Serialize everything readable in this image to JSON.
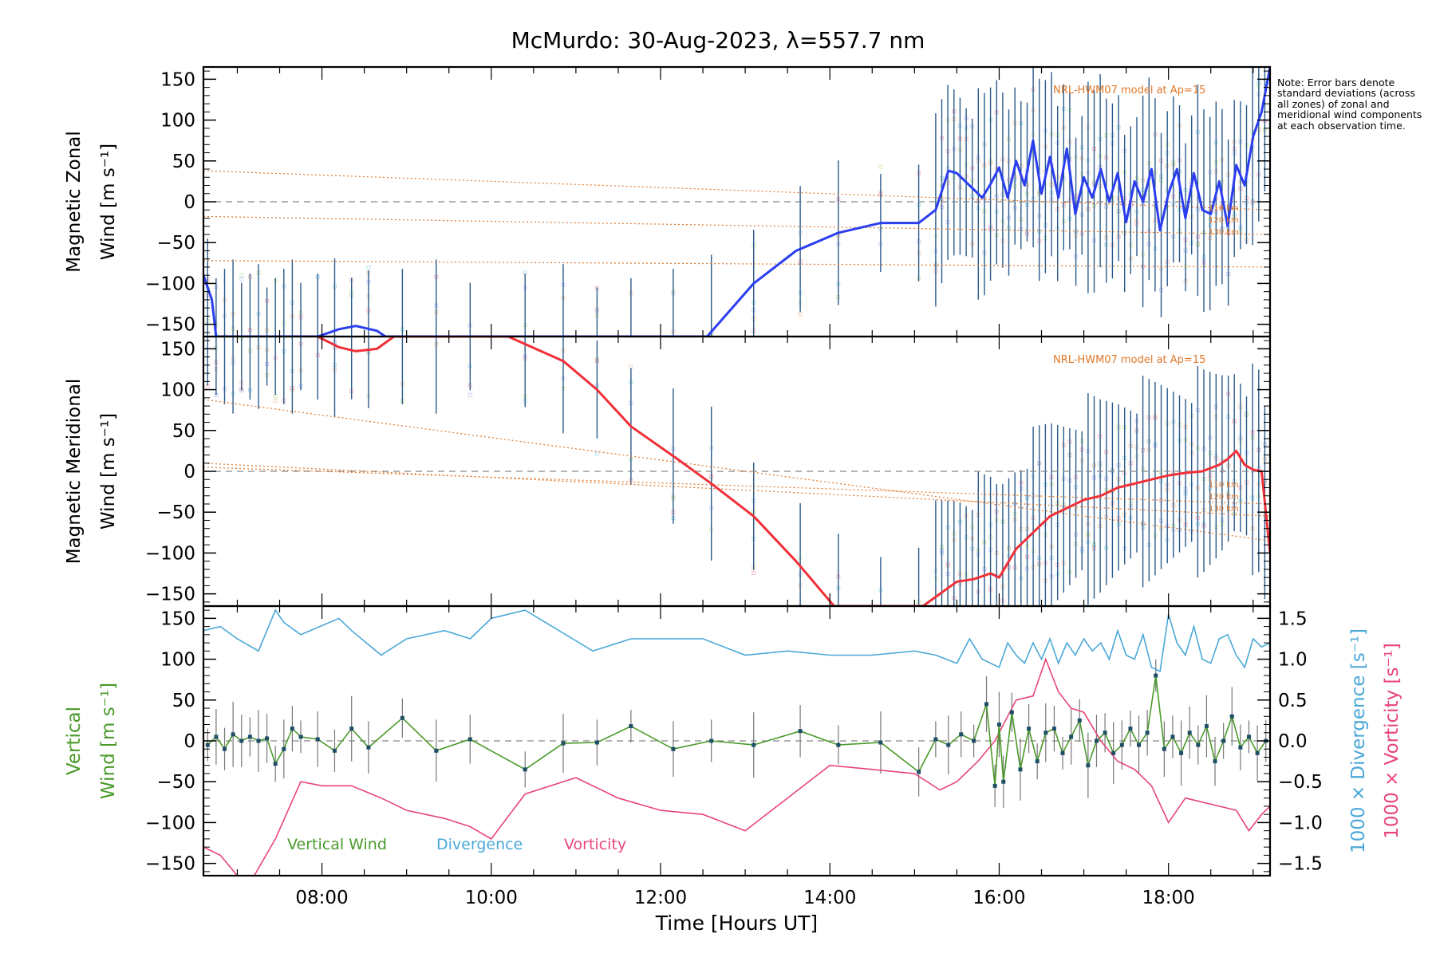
{
  "title": "McMurdo: 30-Aug-2023, λ=557.7 nm",
  "note": "Note: Error bars denote standard deviations (across all zones) of zonal and meridional wind components at each observation time.",
  "xaxis": {
    "label": "Time [Hours UT]",
    "range": [
      6.6,
      19.2
    ],
    "ticks": [
      8,
      10,
      12,
      14,
      16,
      18
    ],
    "tick_labels": [
      "08:00",
      "10:00",
      "12:00",
      "14:00",
      "16:00",
      "18:00"
    ]
  },
  "colors": {
    "zonal": "#2b3ef0",
    "meridional": "#f03038",
    "vertical": "#4a9a2a",
    "divergence": "#4aa8d8",
    "vorticity": "#e8457a",
    "model": "#e0782a",
    "errbar": "#2b5a8a",
    "axis": "#000000",
    "zero": "#888888"
  },
  "chart_data": [
    {
      "type": "line",
      "panel": "zonal",
      "ylabel_line1": "Magnetic Zonal",
      "ylabel_line2": "Wind [m s⁻¹]",
      "ylim": [
        -165,
        165
      ],
      "yticks": [
        -150,
        -100,
        -50,
        0,
        50,
        100,
        150
      ],
      "ytick_labels": [
        "−150",
        "−100",
        "−50",
        "0",
        "50",
        "100",
        "150"
      ],
      "model_label": "NRL-HWM07 model at Ap=15",
      "model_alt_labels": [
        "110 km",
        "120 km",
        "130 km"
      ],
      "series": [
        {
          "name": "Zonal wind",
          "x": [
            6.6,
            6.7,
            6.75,
            7.95,
            8.2,
            8.4,
            8.65,
            8.75,
            12.55,
            13.1,
            13.6,
            14.1,
            14.6,
            15.05,
            15.25,
            15.4,
            15.5,
            15.65,
            15.8,
            15.9,
            16.0,
            16.1,
            16.2,
            16.3,
            16.4,
            16.5,
            16.6,
            16.7,
            16.8,
            16.9,
            17.0,
            17.1,
            17.2,
            17.3,
            17.4,
            17.5,
            17.6,
            17.7,
            17.8,
            17.9,
            18.0,
            18.1,
            18.2,
            18.3,
            18.4,
            18.5,
            18.6,
            18.7,
            18.8,
            18.9,
            19.0,
            19.1,
            19.2
          ],
          "values": [
            -90,
            -120,
            -165,
            -165,
            -156,
            -152,
            -158,
            -165,
            -165,
            -100,
            -60,
            -38,
            -26,
            -26,
            -10,
            38,
            35,
            20,
            5,
            22,
            42,
            5,
            50,
            20,
            75,
            10,
            55,
            5,
            65,
            -15,
            30,
            5,
            40,
            0,
            35,
            -25,
            25,
            0,
            40,
            -35,
            10,
            40,
            -20,
            35,
            -10,
            -15,
            25,
            -30,
            45,
            20,
            80,
            110,
            165
          ]
        },
        {
          "name": "Model 110 km",
          "x": [
            6.6,
            19.2
          ],
          "values": [
            38,
            -10
          ]
        },
        {
          "name": "Model 120 km",
          "x": [
            6.6,
            19.2
          ],
          "values": [
            -18,
            -40
          ]
        },
        {
          "name": "Model 130 km",
          "x": [
            6.6,
            19.2
          ],
          "values": [
            -72,
            -80
          ]
        }
      ]
    },
    {
      "type": "line",
      "panel": "meridional",
      "ylabel_line1": "Magnetic Meridional",
      "ylabel_line2": "Wind [m s⁻¹]",
      "ylim": [
        -165,
        165
      ],
      "yticks": [
        -150,
        -100,
        -50,
        0,
        50,
        100,
        150
      ],
      "ytick_labels": [
        "−150",
        "−100",
        "−50",
        "0",
        "50",
        "100",
        "150"
      ],
      "model_label": "NRL-HWM07 model at Ap=15",
      "model_alt_labels": [
        "110 km",
        "120 km",
        "130 km"
      ],
      "series": [
        {
          "name": "Meridional wind",
          "x": [
            7.95,
            8.2,
            8.4,
            8.65,
            8.85,
            10.2,
            10.85,
            11.25,
            11.65,
            12.2,
            12.6,
            13.1,
            13.6,
            14.05,
            14.2,
            15.1,
            15.3,
            15.5,
            15.7,
            15.9,
            16.0,
            16.2,
            16.4,
            16.6,
            16.8,
            17.0,
            17.2,
            17.4,
            17.6,
            17.8,
            18.0,
            18.2,
            18.4,
            18.6,
            18.7,
            18.8,
            18.9,
            19.0,
            19.1,
            19.2
          ],
          "values": [
            165,
            152,
            147,
            150,
            165,
            165,
            135,
            100,
            55,
            15,
            -15,
            -55,
            -110,
            -165,
            -165,
            -165,
            -150,
            -135,
            -132,
            -125,
            -130,
            -95,
            -75,
            -55,
            -45,
            -35,
            -30,
            -20,
            -15,
            -10,
            -5,
            -2,
            0,
            8,
            15,
            25,
            8,
            2,
            0,
            -100
          ]
        },
        {
          "name": "Model 110 km",
          "x": [
            6.6,
            19.2
          ],
          "values": [
            10,
            -55
          ]
        },
        {
          "name": "Model 120 km",
          "x": [
            6.6,
            19.2
          ],
          "values": [
            5,
            -40
          ]
        },
        {
          "name": "Model 130 km",
          "x": [
            6.6,
            19.2
          ],
          "values": [
            88,
            -85
          ]
        }
      ]
    },
    {
      "type": "line",
      "panel": "vertical",
      "ylabel_line1": "Vertical",
      "ylabel_line2": "Wind [m s⁻¹]",
      "ylim": [
        -165,
        165
      ],
      "yticks": [
        -150,
        -100,
        -50,
        0,
        50,
        100,
        150
      ],
      "ytick_labels": [
        "−150",
        "−100",
        "−50",
        "0",
        "50",
        "100",
        "150"
      ],
      "y2label_divergence": "1000 × Divergence [s⁻¹]",
      "y2label_vorticity": "1000 × Vorticity [s⁻¹]",
      "y2lim": [
        -1.65,
        1.65
      ],
      "y2ticks": [
        -1.5,
        -1.0,
        -0.5,
        0.0,
        0.5,
        1.0,
        1.5
      ],
      "y2tick_labels": [
        "−1.5",
        "−1.0",
        "−0.5",
        "0.0",
        "0.5",
        "1.0",
        "1.5"
      ],
      "legend": [
        "Vertical Wind",
        "Divergence",
        "Vorticity"
      ],
      "series": [
        {
          "name": "Vertical Wind",
          "x": [
            6.65,
            6.75,
            6.85,
            6.95,
            7.05,
            7.15,
            7.25,
            7.35,
            7.45,
            7.55,
            7.65,
            7.75,
            7.95,
            8.15,
            8.35,
            8.55,
            8.95,
            9.35,
            9.75,
            10.4,
            10.85,
            11.25,
            11.65,
            12.15,
            12.6,
            13.1,
            13.65,
            14.1,
            14.6,
            15.05,
            15.25,
            15.4,
            15.55,
            15.7,
            15.85,
            15.95,
            16.0,
            16.05,
            16.15,
            16.25,
            16.35,
            16.45,
            16.55,
            16.65,
            16.75,
            16.85,
            16.95,
            17.05,
            17.15,
            17.25,
            17.35,
            17.45,
            17.55,
            17.65,
            17.75,
            17.85,
            17.95,
            18.05,
            18.15,
            18.25,
            18.35,
            18.45,
            18.55,
            18.65,
            18.75,
            18.85,
            18.95,
            19.05,
            19.15
          ],
          "values": [
            -5,
            5,
            -10,
            8,
            0,
            5,
            0,
            3,
            -28,
            -10,
            15,
            5,
            2,
            -12,
            15,
            -8,
            28,
            -12,
            2,
            -35,
            -3,
            -2,
            18,
            -10,
            0,
            -5,
            12,
            -5,
            -2,
            -38,
            2,
            -5,
            8,
            0,
            45,
            -55,
            20,
            -50,
            35,
            -35,
            15,
            -25,
            10,
            15,
            -15,
            5,
            25,
            -30,
            0,
            10,
            -15,
            -5,
            15,
            -5,
            10,
            80,
            -10,
            5,
            -15,
            10,
            -5,
            18,
            -25,
            0,
            30,
            -8,
            5,
            -15,
            0
          ]
        },
        {
          "name": "Divergence",
          "x": [
            6.6,
            6.8,
            7.0,
            7.25,
            7.45,
            7.55,
            7.75,
            8.2,
            8.35,
            8.7,
            9.0,
            9.45,
            9.75,
            10.0,
            10.4,
            11.2,
            11.65,
            12.0,
            12.5,
            13.0,
            13.5,
            14.0,
            14.5,
            15.0,
            15.25,
            15.5,
            15.65,
            15.8,
            16.0,
            16.1,
            16.2,
            16.3,
            16.4,
            16.5,
            16.6,
            16.7,
            16.8,
            16.9,
            17.0,
            17.1,
            17.2,
            17.3,
            17.4,
            17.5,
            17.6,
            17.7,
            17.8,
            17.9,
            18.0,
            18.1,
            18.2,
            18.3,
            18.4,
            18.5,
            18.6,
            18.7,
            18.8,
            18.9,
            19.0,
            19.1,
            19.2
          ],
          "values": [
            1.35,
            1.4,
            1.25,
            1.1,
            1.6,
            1.45,
            1.3,
            1.5,
            1.35,
            1.05,
            1.25,
            1.35,
            1.25,
            1.5,
            1.6,
            1.1,
            1.25,
            1.25,
            1.25,
            1.05,
            1.1,
            1.05,
            1.05,
            1.1,
            1.05,
            0.95,
            1.25,
            1.0,
            0.9,
            1.2,
            1.05,
            0.95,
            1.2,
            1.0,
            1.25,
            0.95,
            1.2,
            1.05,
            1.25,
            1.1,
            1.2,
            1.0,
            1.35,
            1.05,
            1.0,
            1.3,
            0.9,
            0.85,
            1.55,
            1.2,
            1.05,
            1.4,
            1.0,
            0.95,
            1.25,
            1.3,
            1.05,
            0.9,
            1.25,
            1.15,
            1.2
          ]
        },
        {
          "name": "Vorticity",
          "x": [
            6.6,
            6.8,
            7.0,
            7.2,
            7.45,
            7.75,
            8.0,
            8.35,
            8.7,
            9.0,
            9.45,
            9.75,
            10.0,
            10.4,
            11.0,
            11.5,
            12.0,
            12.5,
            13.0,
            13.5,
            14.0,
            14.5,
            15.0,
            15.3,
            15.5,
            15.75,
            15.95,
            16.2,
            16.4,
            16.55,
            16.7,
            16.85,
            17.0,
            17.2,
            17.4,
            17.6,
            17.8,
            18.0,
            18.2,
            18.4,
            18.6,
            18.8,
            18.95,
            19.1,
            19.2
          ],
          "values": [
            -1.3,
            -1.4,
            -1.65,
            -1.65,
            -1.2,
            -0.5,
            -0.55,
            -0.55,
            -0.7,
            -0.85,
            -0.95,
            -1.05,
            -1.2,
            -0.65,
            -0.45,
            -0.7,
            -0.85,
            -0.9,
            -1.1,
            -0.7,
            -0.3,
            -0.35,
            -0.4,
            -0.6,
            -0.5,
            -0.25,
            0.0,
            0.5,
            0.55,
            1.0,
            0.6,
            0.4,
            0.35,
            0.0,
            -0.25,
            -0.35,
            -0.55,
            -1.0,
            -0.7,
            -0.75,
            -0.8,
            -0.85,
            -1.1,
            -0.9,
            -0.8
          ]
        }
      ]
    }
  ]
}
